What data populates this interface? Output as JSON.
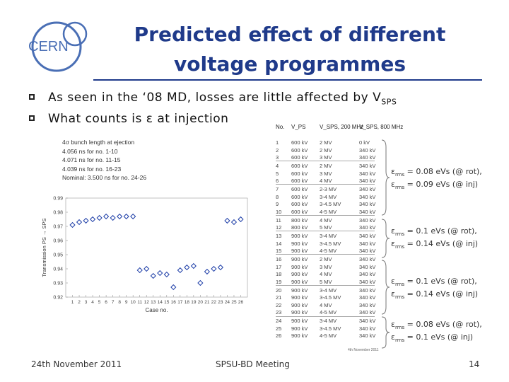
{
  "logo": {
    "text": "CERN"
  },
  "title": {
    "line1": "Predicted effect of different",
    "line2": "voltage programmes"
  },
  "bullets": [
    {
      "text": "As seen in the ‘08 MD, losses are little affected by V",
      "sub": "SPS"
    },
    {
      "text": "What counts is ε at injection",
      "sub": ""
    }
  ],
  "plot": {
    "legend": [
      "4σ bunch length at ejection",
      "4.056 ns for no. 1-10",
      "4.071 ns for no. 11-15",
      "4.039 ns for no. 16-23",
      "Nominal: 3.500 ns for no. 24-26"
    ],
    "ylabel": "Transmission PS → SPS",
    "xlabel": "Case no."
  },
  "chart_data": {
    "type": "scatter",
    "xlabel": "Case no.",
    "ylabel": "Transmission PS → SPS",
    "xlim": [
      0,
      27
    ],
    "ylim": [
      0.92,
      0.99
    ],
    "x_ticks": [
      1,
      2,
      3,
      4,
      5,
      6,
      7,
      8,
      9,
      10,
      11,
      12,
      13,
      14,
      15,
      16,
      17,
      18,
      19,
      20,
      21,
      22,
      23,
      24,
      25,
      26
    ],
    "y_ticks": [
      0.92,
      0.93,
      0.94,
      0.95,
      0.96,
      0.97,
      0.98,
      0.99
    ],
    "series": [
      {
        "x": [
          1,
          2,
          3,
          4,
          5,
          6,
          7,
          8,
          9,
          10,
          11,
          12,
          13,
          14,
          15,
          16,
          17,
          18,
          19,
          20,
          21,
          22,
          23,
          24,
          25,
          26
        ],
        "y": [
          0.971,
          0.973,
          0.974,
          0.975,
          0.976,
          0.977,
          0.976,
          0.977,
          0.977,
          0.977,
          0.939,
          0.94,
          0.935,
          0.937,
          0.936,
          0.927,
          0.939,
          0.941,
          0.942,
          0.93,
          0.938,
          0.94,
          0.941,
          0.974,
          0.973,
          0.975
        ]
      }
    ],
    "marker_color": "#1f3fa8",
    "grid": false
  },
  "table": {
    "headers": [
      "No.",
      "V_PS",
      "V_SPS, 200 MHz",
      "V_SPS, 800 MHz"
    ],
    "rows": [
      [
        "1",
        "600 kV",
        "2 MV",
        "0 kV"
      ],
      [
        "2",
        "600 kV",
        "2 MV",
        "340 kV"
      ],
      [
        "3",
        "600 kV",
        "3 MV",
        "340 kV"
      ],
      [
        "4",
        "600 kV",
        "2 MV",
        "340 kV"
      ],
      [
        "5",
        "600 kV",
        "3 MV",
        "340 kV"
      ],
      [
        "6",
        "600 kV",
        "4 MV",
        "340 kV"
      ],
      [
        "7",
        "600 kV",
        "2-3 MV",
        "340 kV"
      ],
      [
        "8",
        "600 kV",
        "3-4 MV",
        "340 kV"
      ],
      [
        "9",
        "600 kV",
        "3-4.5 MV",
        "340 kV"
      ],
      [
        "10",
        "600 kV",
        "4-5 MV",
        "340 kV"
      ],
      [
        "11",
        "800 kV",
        "4 MV",
        "340 kV"
      ],
      [
        "12",
        "800 kV",
        "5 MV",
        "340 kV"
      ],
      [
        "13",
        "900 kV",
        "3-4 MV",
        "340 kV"
      ],
      [
        "14",
        "900 kV",
        "3-4.5 MV",
        "340 kV"
      ],
      [
        "15",
        "900 kV",
        "4-5 MV",
        "340 kV"
      ],
      [
        "16",
        "900 kV",
        "2 MV",
        "340 kV"
      ],
      [
        "17",
        "900 kV",
        "3 MV",
        "340 kV"
      ],
      [
        "18",
        "900 kV",
        "4 MV",
        "340 kV"
      ],
      [
        "19",
        "900 kV",
        "5 MV",
        "340 kV"
      ],
      [
        "20",
        "900 kV",
        "3-4 MV",
        "340 kV"
      ],
      [
        "21",
        "900 kV",
        "3-4.5 MV",
        "340 kV"
      ],
      [
        "22",
        "900 kV",
        "4 MV",
        "340 kV"
      ],
      [
        "23",
        "900 kV",
        "4-5 MV",
        "340 kV"
      ],
      [
        "24",
        "900 kV",
        "3-4 MV",
        "340 kV"
      ],
      [
        "25",
        "900 kV",
        "3-4.5 MV",
        "340 kV"
      ],
      [
        "26",
        "900 kV",
        "4-5 MV",
        "340 kV"
      ]
    ],
    "note": "4th November 2011"
  },
  "annotations": [
    {
      "l1_pre": "ε",
      "l1_sub": "rms",
      "l1_post": " = 0.08 eVs (@ rot),",
      "l2_pre": "ε",
      "l2_sub": "rms",
      "l2_post": " = 0.09 eVs (@ inj)"
    },
    {
      "l1_pre": "ε",
      "l1_sub": "rms",
      "l1_post": " = 0.1 eVs (@ rot),",
      "l2_pre": "ε",
      "l2_sub": "rms",
      "l2_post": " = 0.14 eVs (@ inj)"
    },
    {
      "l1_pre": "ε",
      "l1_sub": "rms",
      "l1_post": " = 0.1 eVs (@ rot),",
      "l2_pre": "ε",
      "l2_sub": "rms",
      "l2_post": " = 0.14 eVs (@ inj)"
    },
    {
      "l1_pre": "ε",
      "l1_sub": "rms",
      "l1_post": " = 0.08 eVs (@ rot),",
      "l2_pre": "ε",
      "l2_sub": "rms",
      "l2_post": " = 0.1 eVs (@ inj)"
    }
  ],
  "footer": {
    "date": "24th November 2011",
    "meeting": "SPSU-BD Meeting",
    "page": "14"
  }
}
